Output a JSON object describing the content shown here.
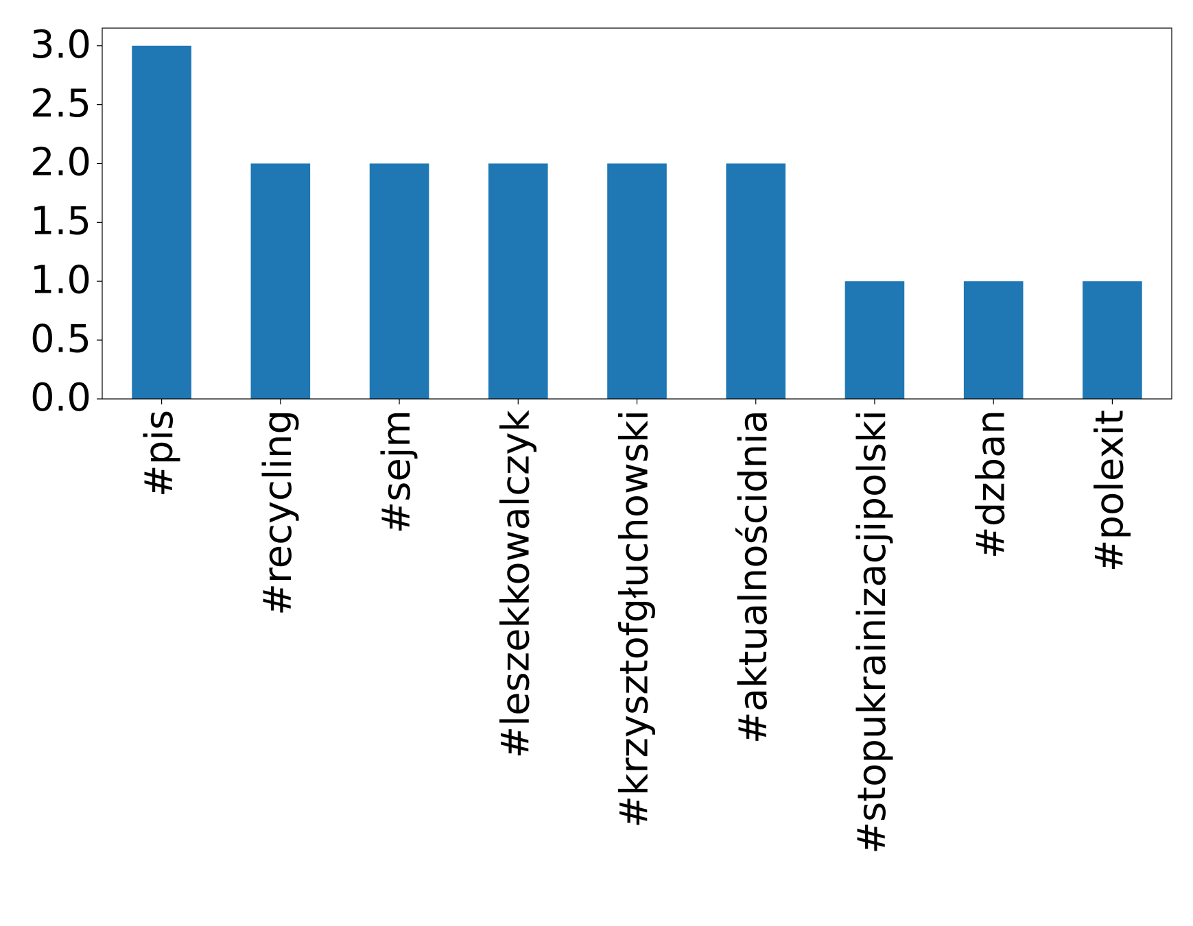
{
  "chart_data": {
    "type": "bar",
    "categories": [
      "#pis",
      "#recycling",
      "#sejm",
      "#leszekkowalczyk",
      "#krzysztofgłuchowski",
      "#aktualnościdnia",
      "#stopukrainizacjipolski",
      "#dzban",
      "#polexit"
    ],
    "values": [
      3,
      2,
      2,
      2,
      2,
      2,
      1,
      1,
      1
    ],
    "color": "#1f77b4",
    "ylim": [
      0,
      3.15
    ],
    "yticks": [
      {
        "value": 0,
        "label": "0.0"
      },
      0.5,
      {
        "value": 1,
        "label": "1.0"
      },
      1.5,
      {
        "value": 2,
        "label": "2.0"
      },
      2.5,
      {
        "value": 3,
        "label": "3.0"
      }
    ],
    "grid": false
  }
}
